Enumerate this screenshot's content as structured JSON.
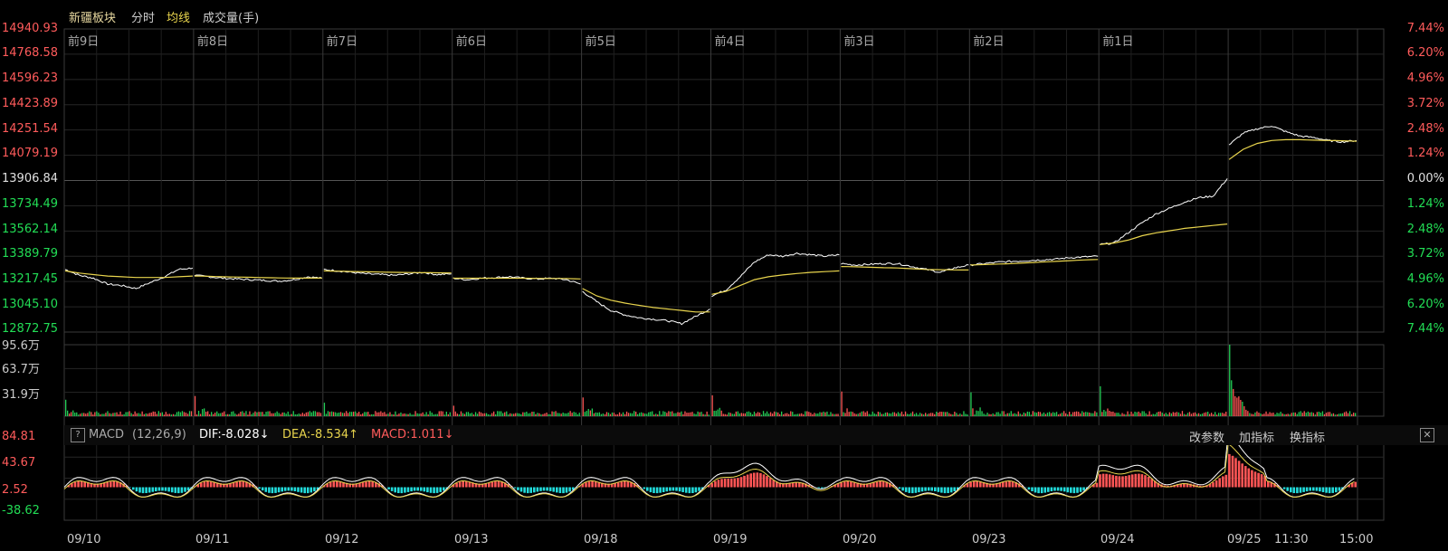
{
  "header": {
    "title": "新疆板块",
    "tabs": [
      "分时",
      "均线",
      "成交量(手)"
    ],
    "colors": {
      "title": "#e8d9a0",
      "tab_active": "#e8d44d",
      "tab": "#cccccc"
    }
  },
  "price_axis": {
    "labels": [
      "14940.93",
      "14768.58",
      "14596.23",
      "14423.89",
      "14251.54",
      "14079.19",
      "13906.84",
      "13734.49",
      "13562.14",
      "13389.79",
      "13217.45",
      "13045.10",
      "12872.75"
    ],
    "pct_labels": [
      "7.44%",
      "6.20%",
      "4.96%",
      "3.72%",
      "2.48%",
      "1.24%",
      "0.00%",
      "1.24%",
      "2.48%",
      "3.72%",
      "4.96%",
      "6.20%",
      "7.44%"
    ]
  },
  "day_labels": [
    "前9日",
    "前8日",
    "前7日",
    "前6日",
    "前5日",
    "前4日",
    "前3日",
    "前2日",
    "前1日"
  ],
  "volume_axis": {
    "labels": [
      "95.6万",
      "63.7万",
      "31.9万"
    ]
  },
  "macd": {
    "name": "MACD",
    "params": "(12,26,9)",
    "help_label": "?",
    "dif": "DIF:-8.028↓",
    "dea": "DEA:-8.534↑",
    "macd": "MACD:1.011↓",
    "buttons": [
      "改参数",
      "加指标",
      "换指标"
    ],
    "close_label": "✕",
    "axis_labels": [
      "84.81",
      "43.67",
      "2.52",
      "-38.62"
    ]
  },
  "date_labels": [
    "09/10",
    "09/11",
    "09/12",
    "09/13",
    "09/18",
    "09/19",
    "09/20",
    "09/23",
    "09/24",
    "09/25",
    "11:30",
    "15:00"
  ],
  "chart_data": {
    "type": "line",
    "base_price": 13906.84,
    "ylim": [
      12872.75,
      14940.93
    ],
    "x": [
      "09/10",
      "09/11",
      "09/12",
      "09/13",
      "09/18",
      "09/19",
      "09/20",
      "09/23",
      "09/24",
      "09/25"
    ],
    "series": [
      {
        "name": "分时",
        "color": "#ffffff",
        "values": [
          [
            13300,
            13260,
            13240,
            13200,
            13190,
            13170,
            13210,
            13250,
            13300,
            13310
          ],
          [
            13260,
            13250,
            13240,
            13235,
            13230,
            13225,
            13220,
            13230,
            13250,
            13240
          ],
          [
            13300,
            13290,
            13280,
            13270,
            13265,
            13260,
            13270,
            13280,
            13265,
            13270
          ],
          [
            13240,
            13230,
            13240,
            13245,
            13250,
            13240,
            13235,
            13240,
            13230,
            13200
          ],
          [
            13150,
            13080,
            13020,
            12990,
            12970,
            12960,
            12950,
            12930,
            12980,
            13030
          ],
          [
            13120,
            13160,
            13250,
            13350,
            13400,
            13390,
            13410,
            13400,
            13390,
            13400
          ],
          [
            13340,
            13330,
            13335,
            13340,
            13340,
            13320,
            13300,
            13280,
            13310,
            13330
          ],
          [
            13330,
            13340,
            13350,
            13355,
            13360,
            13365,
            13370,
            13380,
            13385,
            13390
          ],
          [
            13470,
            13480,
            13550,
            13620,
            13680,
            13720,
            13760,
            13790,
            13800,
            13920
          ],
          [
            14150,
            14230,
            14260,
            14280,
            14240,
            14210,
            14200,
            14180,
            14170,
            14180
          ]
        ]
      },
      {
        "name": "均线",
        "color": "#e8d44d",
        "values": [
          [
            13290,
            13275,
            13265,
            13255,
            13250,
            13245,
            13245,
            13245,
            13250,
            13255
          ],
          [
            13255,
            13253,
            13250,
            13248,
            13246,
            13244,
            13242,
            13241,
            13241,
            13241
          ],
          [
            13290,
            13288,
            13286,
            13284,
            13282,
            13280,
            13279,
            13278,
            13277,
            13276
          ],
          [
            13240,
            13240,
            13240,
            13240,
            13240,
            13240,
            13239,
            13238,
            13238,
            13235
          ],
          [
            13170,
            13120,
            13090,
            13070,
            13055,
            13040,
            13030,
            13020,
            13010,
            13010
          ],
          [
            13130,
            13150,
            13190,
            13230,
            13250,
            13262,
            13272,
            13280,
            13285,
            13290
          ],
          [
            13320,
            13318,
            13315,
            13312,
            13310,
            13305,
            13300,
            13298,
            13297,
            13296
          ],
          [
            13330,
            13333,
            13337,
            13340,
            13345,
            13350,
            13355,
            13360,
            13365,
            13368
          ],
          [
            13470,
            13480,
            13500,
            13530,
            13550,
            13565,
            13580,
            13590,
            13600,
            13610
          ],
          [
            14050,
            14120,
            14160,
            14180,
            14185,
            14185,
            14182,
            14180,
            14178,
            14175
          ]
        ]
      }
    ],
    "volume": {
      "ylim": [
        0,
        95.6
      ],
      "unit": "万",
      "day_open_spikes": [
        22,
        27,
        18,
        14,
        25,
        28,
        33,
        32,
        40,
        95.6
      ]
    }
  }
}
